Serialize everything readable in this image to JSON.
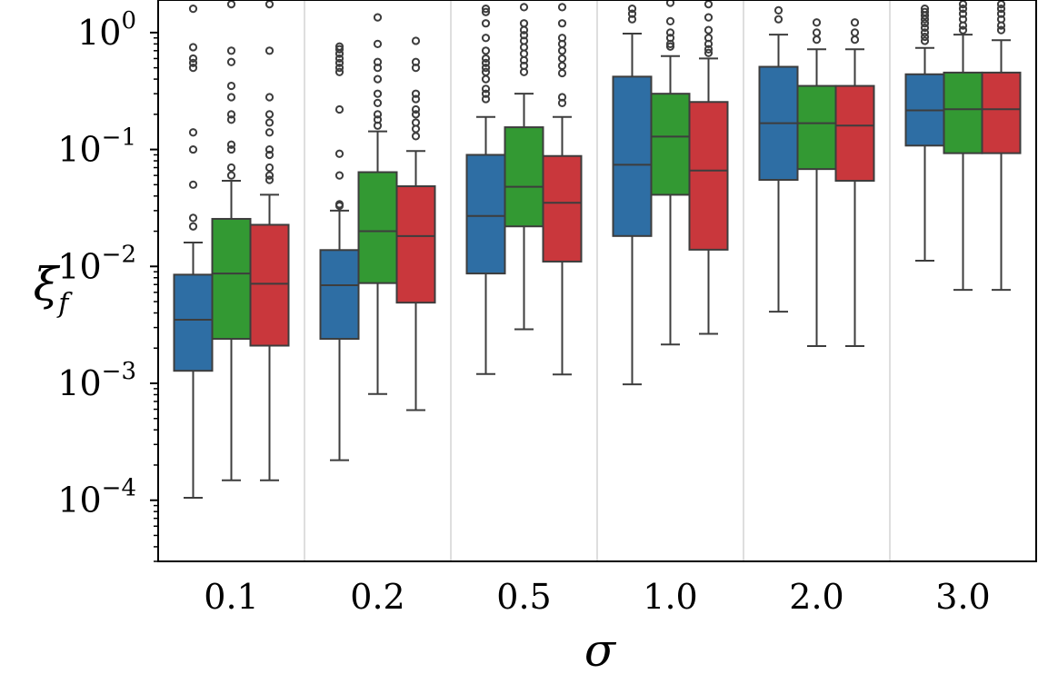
{
  "chart_data": {
    "type": "box",
    "xlabel": "σ",
    "ylabel": "ξ",
    "ylabel_subscript": "f",
    "yscale": "log",
    "ylim": [
      3e-05,
      1.9
    ],
    "grid": "vertical separators",
    "categories": [
      "0.1",
      "0.2",
      "0.5",
      "1.0",
      "2.0",
      "3.0"
    ],
    "y_ticks": [
      {
        "value": 0.0001,
        "base": "10",
        "exp": "−4"
      },
      {
        "value": 0.001,
        "base": "10",
        "exp": "−3"
      },
      {
        "value": 0.01,
        "base": "10",
        "exp": "−2"
      },
      {
        "value": 0.1,
        "base": "10",
        "exp": "−1"
      },
      {
        "value": 1,
        "base": "10",
        "exp": "0"
      }
    ],
    "series": [
      {
        "color": "#2e6ea4",
        "boxes": [
          {
            "whislo": 0.000105,
            "q1": 0.00128,
            "med": 0.0035,
            "q3": 0.0085,
            "whishi": 0.016,
            "fliers": [
              0.022,
              0.026,
              0.05,
              0.1,
              0.14,
              0.5,
              0.55,
              0.6,
              0.75,
              1.6
            ]
          },
          {
            "whislo": 0.00022,
            "q1": 0.0024,
            "med": 0.0069,
            "q3": 0.0138,
            "whishi": 0.03,
            "fliers": [
              0.033,
              0.034,
              0.06,
              0.092,
              0.22,
              0.46,
              0.5,
              0.55,
              0.6,
              0.66,
              0.72,
              0.76
            ]
          },
          {
            "whislo": 0.0012,
            "q1": 0.0087,
            "med": 0.027,
            "q3": 0.09,
            "whishi": 0.19,
            "fliers": [
              0.27,
              0.3,
              0.33,
              0.4,
              0.46,
              0.5,
              0.55,
              0.6,
              0.7,
              0.9,
              1.2,
              1.5,
              1.6
            ]
          },
          {
            "whislo": 0.00098,
            "q1": 0.0182,
            "med": 0.074,
            "q3": 0.42,
            "whishi": 0.98,
            "fliers": [
              1.3,
              1.45,
              1.6
            ]
          },
          {
            "whislo": 0.0041,
            "q1": 0.055,
            "med": 0.168,
            "q3": 0.51,
            "whishi": 0.96,
            "fliers": [
              1.3,
              1.55
            ]
          },
          {
            "whislo": 0.0112,
            "q1": 0.108,
            "med": 0.216,
            "q3": 0.44,
            "whishi": 0.74,
            "fliers": [
              0.85,
              0.92,
              1.0,
              1.1,
              1.2,
              1.3,
              1.4,
              1.5,
              1.6
            ]
          }
        ]
      },
      {
        "color": "#339933",
        "boxes": [
          {
            "whislo": 0.000148,
            "q1": 0.0024,
            "med": 0.0087,
            "q3": 0.0255,
            "whishi": 0.054,
            "fliers": [
              0.06,
              0.07,
              0.1,
              0.11,
              0.18,
              0.2,
              0.28,
              0.35,
              0.56,
              0.7,
              1.75
            ]
          },
          {
            "whislo": 0.00081,
            "q1": 0.0072,
            "med": 0.02,
            "q3": 0.064,
            "whishi": 0.143,
            "fliers": [
              0.16,
              0.18,
              0.2,
              0.25,
              0.3,
              0.4,
              0.5,
              0.56,
              0.8,
              1.35
            ]
          },
          {
            "whislo": 0.0029,
            "q1": 0.022,
            "med": 0.048,
            "q3": 0.155,
            "whishi": 0.3,
            "fliers": [
              0.46,
              0.52,
              0.58,
              0.66,
              0.75,
              0.85,
              0.95,
              1.05,
              1.2,
              1.65
            ]
          },
          {
            "whislo": 0.00215,
            "q1": 0.041,
            "med": 0.129,
            "q3": 0.3,
            "whishi": 0.63,
            "fliers": [
              0.76,
              0.8,
              0.9,
              1.0,
              1.25,
              1.8
            ]
          },
          {
            "whislo": 0.00208,
            "q1": 0.068,
            "med": 0.168,
            "q3": 0.35,
            "whishi": 0.72,
            "fliers": [
              0.87,
              1.0,
              1.22
            ]
          },
          {
            "whislo": 0.0063,
            "q1": 0.093,
            "med": 0.221,
            "q3": 0.455,
            "whishi": 0.96,
            "fliers": [
              1.05,
              1.15,
              1.3,
              1.45,
              1.6,
              1.75
            ]
          }
        ]
      },
      {
        "color": "#c9373c",
        "boxes": [
          {
            "whislo": 0.000148,
            "q1": 0.0021,
            "med": 0.0071,
            "q3": 0.0227,
            "whishi": 0.041,
            "fliers": [
              0.055,
              0.06,
              0.07,
              0.09,
              0.1,
              0.14,
              0.17,
              0.2,
              0.28,
              0.7,
              1.75
            ]
          },
          {
            "whislo": 0.00059,
            "q1": 0.0049,
            "med": 0.0182,
            "q3": 0.0485,
            "whishi": 0.097,
            "fliers": [
              0.13,
              0.15,
              0.17,
              0.2,
              0.22,
              0.27,
              0.3,
              0.5,
              0.56,
              0.85
            ]
          },
          {
            "whislo": 0.00119,
            "q1": 0.011,
            "med": 0.035,
            "q3": 0.088,
            "whishi": 0.19,
            "fliers": [
              0.25,
              0.28,
              0.45,
              0.52,
              0.6,
              0.7,
              0.8,
              0.9,
              1.2,
              1.65
            ]
          },
          {
            "whislo": 0.00265,
            "q1": 0.0139,
            "med": 0.066,
            "q3": 0.255,
            "whishi": 0.6,
            "fliers": [
              0.67,
              0.72,
              0.8,
              0.9,
              1.05,
              1.35,
              1.75
            ]
          },
          {
            "whislo": 0.00208,
            "q1": 0.054,
            "med": 0.16,
            "q3": 0.35,
            "whishi": 0.72,
            "fliers": [
              0.87,
              1.0,
              1.22
            ]
          },
          {
            "whislo": 0.0063,
            "q1": 0.093,
            "med": 0.221,
            "q3": 0.455,
            "whishi": 0.86,
            "fliers": [
              1.05,
              1.15,
              1.3,
              1.45,
              1.6,
              1.75
            ]
          }
        ]
      }
    ]
  }
}
